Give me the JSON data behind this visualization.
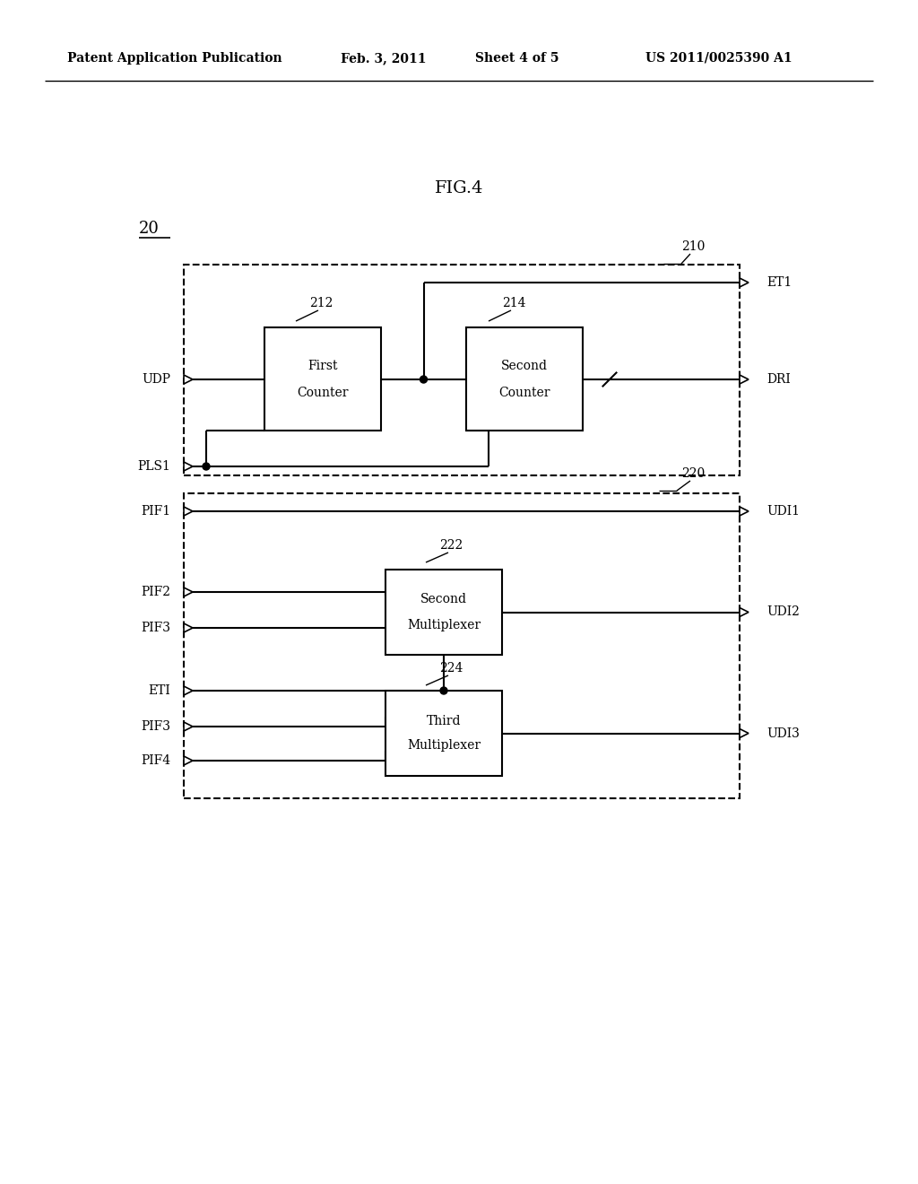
{
  "background_color": "#ffffff",
  "header_text": "Patent Application Publication",
  "header_date": "Feb. 3, 2011",
  "header_sheet": "Sheet 4 of 5",
  "header_patent": "US 2011/0025390 A1",
  "figure_label": "FIG.4",
  "module_label": "20",
  "box210_label": "210",
  "box220_label": "220",
  "box212_label": "212",
  "box214_label": "214",
  "box222_label": "222",
  "box224_label": "224",
  "first_counter_text": [
    "First",
    "Counter"
  ],
  "second_counter_text": [
    "Second",
    "Counter"
  ],
  "second_mux_text": [
    "Second",
    "Multiplexer"
  ],
  "third_mux_text": [
    "Third",
    "Multiplexer"
  ]
}
